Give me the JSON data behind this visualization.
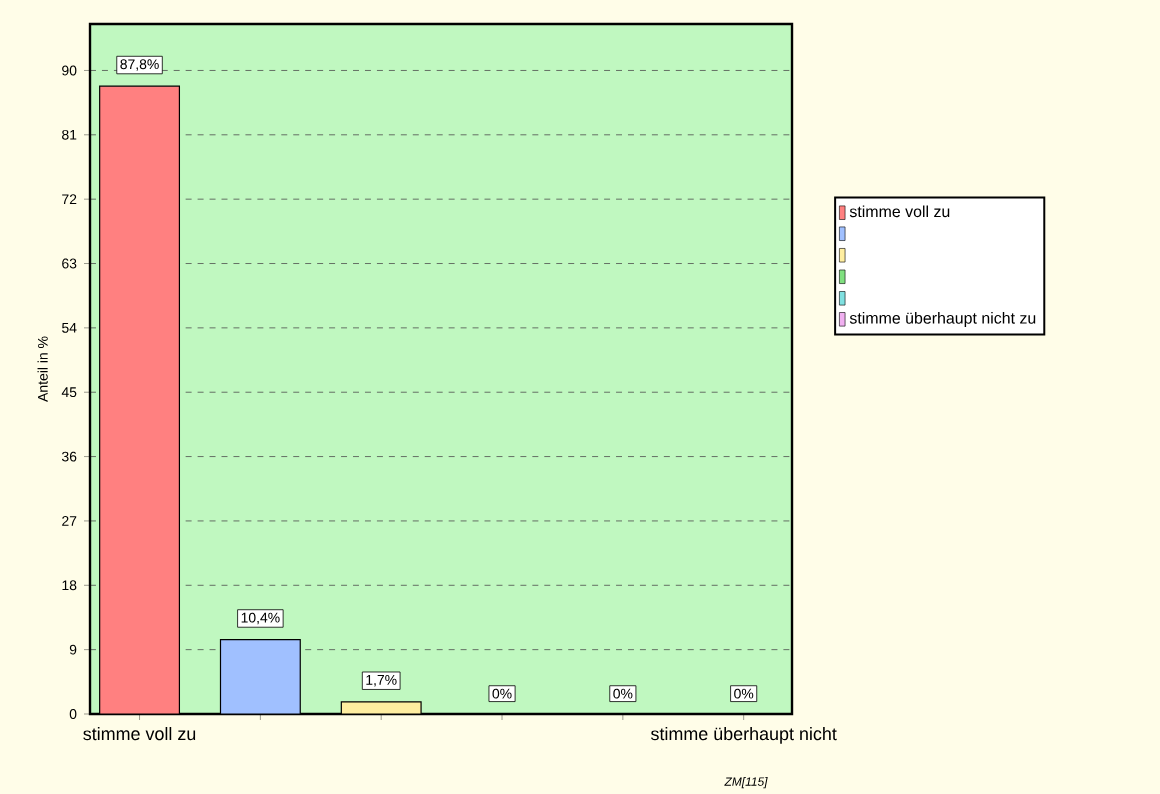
{
  "chart_data": {
    "type": "bar",
    "ylabel": "Anteil in %",
    "categories": [
      "stimme voll zu",
      null,
      null,
      null,
      null,
      "stimme überhaupt nicht"
    ],
    "series": [
      {
        "name": "stimme voll zu",
        "color": "#ff8080",
        "values": [
          87.8,
          null,
          null,
          null,
          null,
          null
        ],
        "value_labels": [
          "87,8%",
          null,
          null,
          null,
          null,
          null
        ]
      },
      {
        "color": "#a0c0ff",
        "values": [
          null,
          10.4,
          null,
          null,
          null,
          null
        ],
        "value_labels": [
          null,
          "10,4%",
          null,
          null,
          null,
          null
        ]
      },
      {
        "color": "#ffeea0",
        "values": [
          null,
          null,
          1.7,
          null,
          null,
          null
        ],
        "value_labels": [
          null,
          null,
          "1,7%",
          null,
          null,
          null
        ]
      },
      {
        "color": "#80e080",
        "values": [
          null,
          null,
          null,
          0,
          null,
          null
        ],
        "value_labels": [
          null,
          null,
          null,
          "0%",
          null,
          null
        ]
      },
      {
        "color": "#80e0e0",
        "values": [
          null,
          null,
          null,
          null,
          0,
          null
        ],
        "value_labels": [
          null,
          null,
          null,
          null,
          "0%",
          null
        ]
      },
      {
        "name": "stimme überhaupt nicht zu",
        "color": "#f0b0f0",
        "values": [
          null,
          null,
          null,
          null,
          null,
          0
        ],
        "value_labels": [
          null,
          null,
          null,
          null,
          null,
          "0%"
        ]
      }
    ],
    "ylim": [
      0,
      96.5
    ],
    "yticks": [
      0,
      9,
      18,
      27,
      36,
      45,
      54,
      63,
      72,
      81,
      90
    ],
    "grid": "y",
    "legend": "right",
    "annotations": [
      "ZM[115]"
    ]
  }
}
